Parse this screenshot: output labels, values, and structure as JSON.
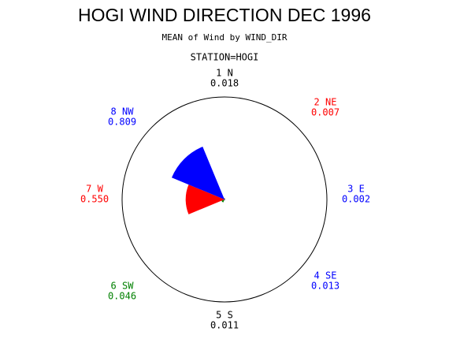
{
  "chart_data": {
    "type": "rose",
    "title": "HOGI WIND DIRECTION DEC 1996",
    "subtitle": "MEAN of Wind by WIND_DIR",
    "station": "STATION=HOGI",
    "categories": [
      "1 N",
      "2 NE",
      "3 E",
      "4 SE",
      "5 S",
      "6 SW",
      "7 W",
      "8 NW"
    ],
    "values": [
      0.018,
      0.007,
      0.002,
      0.013,
      0.011,
      0.046,
      0.55,
      0.809
    ],
    "value_labels": [
      "0.018",
      "0.007",
      "0.002",
      "0.013",
      "0.011",
      "0.046",
      "0.550",
      "0.809"
    ],
    "colors": [
      "#000000",
      "#ff0000",
      "#0000ff",
      "#0000ff",
      "#000000",
      "#008000",
      "#ff0000",
      "#0000ff"
    ],
    "rlim": [
      0,
      1.45
    ]
  }
}
